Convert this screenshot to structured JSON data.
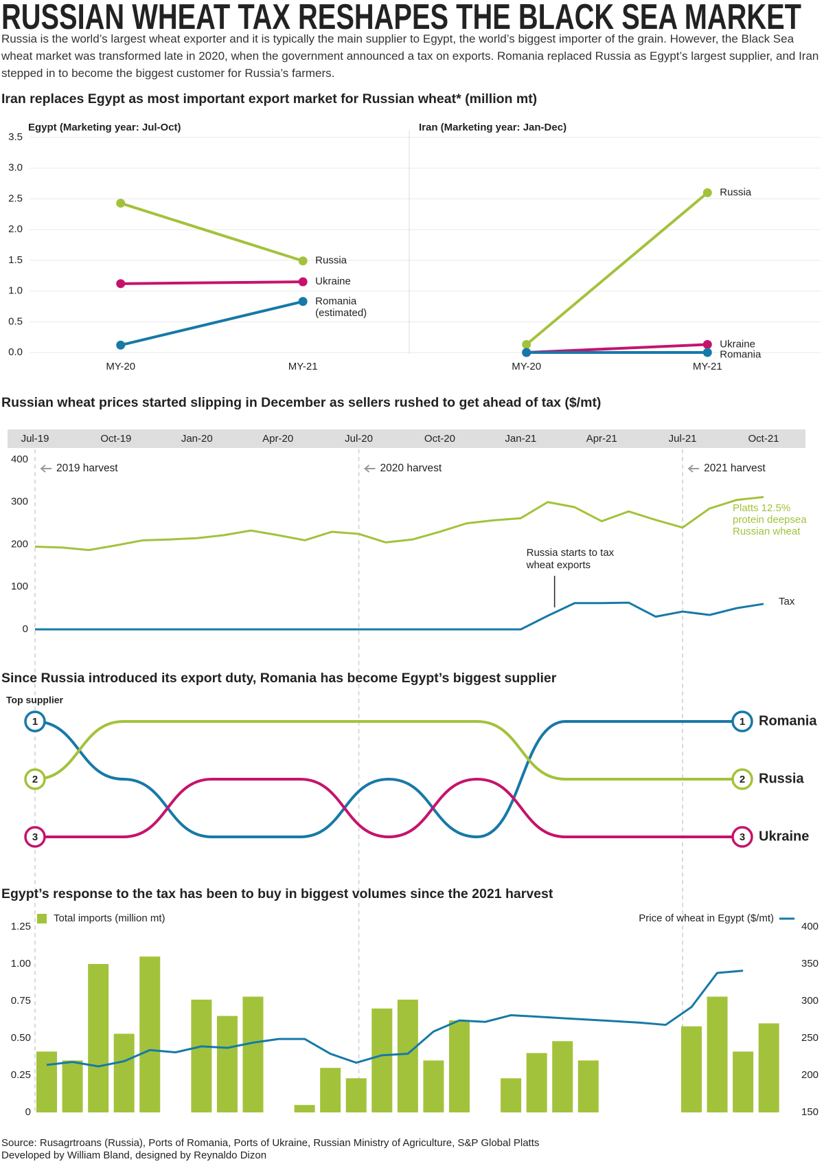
{
  "header": {
    "title": "RUSSIAN WHEAT TAX RESHAPES THE BLACK SEA MARKET",
    "description": "Russia is the world’s largest wheat exporter and it is typically the main supplier to Egypt, the world’s biggest importer of the grain. However, the Black Sea wheat market was transformed late in 2020, when the government announced a tax on exports. Romania replaced Russia as Egypt’s largest supplier, and Iran stepped in to become the biggest customer for Russia’s farmers."
  },
  "chart_data": [
    {
      "type": "slope",
      "title": "Iran replaces Egypt as most important export market for Russian wheat* (million mt)",
      "subtitle": "Egypt (Marketing year: Jul-Oct)",
      "categories": [
        "MY-20",
        "MY-21"
      ],
      "series": [
        {
          "name": "Russia",
          "color": "#a3c23b",
          "values": [
            2.43,
            1.49
          ]
        },
        {
          "name": "Ukraine",
          "color": "#c5136d",
          "values": [
            1.12,
            1.15
          ]
        },
        {
          "name": "Romania (estimated)",
          "color": "#1679a8",
          "values": [
            0.12,
            0.83
          ]
        }
      ],
      "ylim": [
        0,
        3.5
      ],
      "yticks": [
        {
          "value": 0,
          "label": "0.0"
        },
        0.5,
        {
          "value": 1,
          "label": "1.0"
        },
        1.5,
        {
          "value": 2,
          "label": "2.0"
        },
        2.5,
        {
          "value": 3,
          "label": "3.0"
        },
        3.5
      ],
      "grid": true
    },
    {
      "type": "slope",
      "subtitle": "Iran (Marketing year: Jan-Dec)",
      "categories": [
        "MY-20",
        "MY-21"
      ],
      "series": [
        {
          "name": "Russia",
          "color": "#a3c23b",
          "values": [
            0.13,
            2.6
          ]
        },
        {
          "name": "Ukraine",
          "color": "#c5136d",
          "values": [
            0,
            0.13
          ]
        },
        {
          "name": "Romania",
          "color": "#1679a8",
          "values": [
            0,
            0
          ]
        }
      ],
      "ylim": [
        0,
        3.5
      ]
    },
    {
      "type": "line",
      "title": "Russian wheat prices started slipping in December as sellers rushed to get ahead of tax ($/mt)",
      "x": [
        "2019-07",
        "2019-08",
        "2019-09",
        "2019-10",
        "2019-11",
        "2019-12",
        "2020-01",
        "2020-02",
        "2020-03",
        "2020-04",
        "2020-05",
        "2020-06",
        "2020-07",
        "2020-08",
        "2020-09",
        "2020-10",
        "2020-11",
        "2020-12",
        "2021-01",
        "2021-02",
        "2021-03",
        "2021-04",
        "2021-05",
        "2021-06",
        "2021-07",
        "2021-08",
        "2021-09",
        "2021-10"
      ],
      "series": [
        {
          "name": "Platts 12.5% protein deepsea Russian wheat",
          "color": "#a3c23b",
          "values": [
            195,
            193,
            187,
            198,
            210,
            212,
            215,
            222,
            233,
            222,
            210,
            230,
            225,
            205,
            212,
            230,
            250,
            257,
            262,
            300,
            288,
            255,
            278,
            258,
            240,
            285,
            305,
            312
          ]
        },
        {
          "name": "Tax",
          "color": "#1679a8",
          "values": [
            0,
            0,
            0,
            0,
            0,
            0,
            0,
            0,
            0,
            0,
            0,
            0,
            0,
            0,
            0,
            0,
            0,
            0,
            0,
            32,
            62,
            62,
            63,
            30,
            42,
            34,
            50,
            60
          ]
        }
      ],
      "xlim": [
        "2019-07",
        "2021-10"
      ],
      "xticks": [
        {
          "value": "2019-07",
          "label": "Jul-19"
        },
        {
          "value": "2019-10",
          "label": "Oct-19"
        },
        {
          "value": "2020-01",
          "label": "Jan-20"
        },
        {
          "value": "2020-04",
          "label": "Apr-20"
        },
        {
          "value": "2020-07",
          "label": "Jul-20"
        },
        {
          "value": "2020-10",
          "label": "Oct-20"
        },
        {
          "value": "2021-01",
          "label": "Jan-21"
        },
        {
          "value": "2021-04",
          "label": "Apr-21"
        },
        {
          "value": "2021-07",
          "label": "Jul-21"
        },
        {
          "value": "2021-10",
          "label": "Oct-21"
        }
      ],
      "ylim": [
        0,
        400
      ],
      "yticks": [
        0,
        100,
        200,
        300,
        400
      ],
      "grid": false,
      "harvests": [
        {
          "x": "2019-07",
          "label": "2019 harvest"
        },
        {
          "x": "2020-07",
          "label": "2020 harvest"
        },
        {
          "x": "2021-07",
          "label": "2021 harvest"
        }
      ],
      "annotations": [
        {
          "x": "2021-02",
          "text": "Russia starts to tax wheat exports"
        }
      ]
    },
    {
      "type": "bump",
      "title": "Since Russia introduced its export duty, Romania has become Egypt’s biggest supplier",
      "ylabel": "Top supplier",
      "ylim": [
        3,
        1
      ],
      "series": [
        {
          "name": "Romania",
          "color": "#1679a8",
          "values": [
            1,
            2,
            3,
            3,
            2,
            3,
            1,
            1,
            1
          ]
        },
        {
          "name": "Russia",
          "color": "#a3c23b",
          "values": [
            2,
            1,
            1,
            1,
            1,
            1,
            2,
            2,
            2
          ]
        },
        {
          "name": "Ukraine",
          "color": "#c5136d",
          "values": [
            3,
            3,
            2,
            2,
            3,
            2,
            3,
            3,
            3
          ]
        }
      ]
    },
    {
      "type": "bar",
      "title": "Egypt’s response to the tax has been to buy in biggest volumes since the 2021 harvest",
      "series": [
        {
          "name": "Total imports (million mt)",
          "color": "#a3c23b",
          "values": [
            0.41,
            0.35,
            1.0,
            0.53,
            1.05,
            0,
            0.76,
            0.65,
            0.78,
            0,
            0.05,
            0.3,
            0.23,
            0.7,
            0.76,
            0.35,
            0.62,
            0,
            0.23,
            0.4,
            0.48,
            0.35,
            0,
            0,
            0,
            0.58,
            0.78,
            0.41,
            0.6
          ]
        },
        {
          "name": "Price of wheat in Egypt ($/mt)",
          "color": "#1679a8",
          "axis": "y2",
          "values": [
            214,
            218,
            212,
            219,
            234,
            231,
            239,
            237,
            244,
            249,
            249,
            229,
            217,
            227,
            229,
            259,
            274,
            272,
            281,
            279,
            277,
            275,
            273,
            271,
            268,
            292,
            338,
            341,
            null
          ]
        }
      ],
      "ylim": [
        0,
        1.25
      ],
      "yticks": [
        0,
        0.25,
        {
          "value": 0.5,
          "label": "0.50"
        },
        0.75,
        {
          "value": 1,
          "label": "1.00"
        },
        1.25
      ],
      "y2lim": [
        150,
        400
      ],
      "y2ticks": [
        150,
        200,
        250,
        300,
        350,
        400
      ]
    }
  ],
  "footer": {
    "source": "Source: Rusagrtroans (Russia), Ports of Romania, Ports of Ukraine, Russian Ministry of Agriculture, S&P Global Platts",
    "credit": "Developed by William Bland, designed by Reynaldo Dizon"
  }
}
